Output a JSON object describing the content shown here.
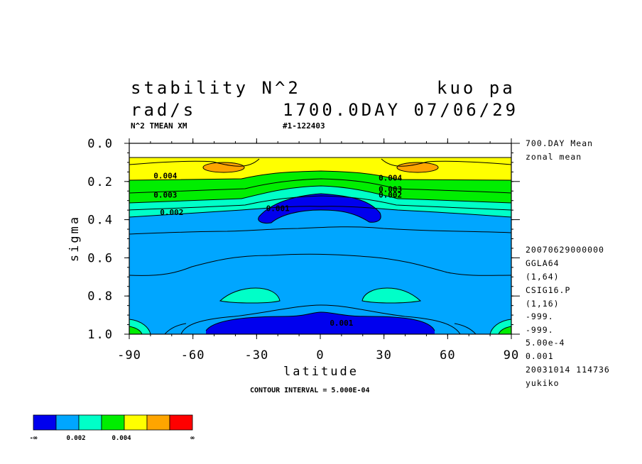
{
  "title": {
    "line1_left": "stability N^2",
    "line1_right": "kuo pa",
    "line2_left": "rad/s",
    "line2_right": "1700.0DAY 07/06/29"
  },
  "subtitle": {
    "left": "N^2 TMEAN XM",
    "right": "#1-122403"
  },
  "side_info": {
    "top": [
      "700.DAY Mean",
      "zonal mean"
    ],
    "bottom": [
      "20070629000000",
      "GGLA64",
      "(1,64)",
      "CSIG16.P",
      "(1,16)",
      "-999.",
      "-999.",
      "5.00e-4",
      "0.001",
      "20031014 114736",
      "yukiko"
    ]
  },
  "footer": {
    "contour_interval": "CONTOUR INTERVAL = 5.000E-04"
  },
  "colorbar": {
    "colors": [
      "#0000ee",
      "#00a6ff",
      "#00ffc8",
      "#00ee00",
      "#ffff00",
      "#ffa500",
      "#ff0000"
    ],
    "labels": [
      "-∞",
      "0.002",
      "0.004",
      "∞"
    ]
  },
  "chart_data": {
    "type": "heatmap",
    "title": "stability N^2",
    "xlabel": "latitude",
    "ylabel": "sigma",
    "xlim": [
      -90,
      90
    ],
    "ylim": [
      1.0,
      0.0
    ],
    "x_ticks": [
      "-90",
      "-60",
      "-30",
      "0",
      "30",
      "60",
      "90"
    ],
    "y_ticks": [
      "0.0",
      "0.2",
      "0.4",
      "0.6",
      "0.8",
      "1.0"
    ],
    "contour_interval": 0.0005,
    "contour_labels": [
      {
        "text": "0.004",
        "lat": -73,
        "sigma": 0.17
      },
      {
        "text": "0.003",
        "lat": -73,
        "sigma": 0.27
      },
      {
        "text": "0.002",
        "lat": -70,
        "sigma": 0.36
      },
      {
        "text": "0.001",
        "lat": -20,
        "sigma": 0.34
      },
      {
        "text": "0.004",
        "lat": 33,
        "sigma": 0.18
      },
      {
        "text": "0.003",
        "lat": 33,
        "sigma": 0.24
      },
      {
        "text": "0.002",
        "lat": 33,
        "sigma": 0.27
      },
      {
        "text": "0.001",
        "lat": 10,
        "sigma": 0.94
      }
    ],
    "bands": [
      {
        "range": "<0.001",
        "color": "#0000ee"
      },
      {
        "range": "0.001-0.002",
        "color": "#00a6ff"
      },
      {
        "range": "0.002-0.003",
        "color": "#00ffc8"
      },
      {
        "range": "0.003-0.004",
        "color": "#00ee00"
      },
      {
        "range": "0.004-0.005",
        "color": "#ffff00"
      },
      {
        "range": "0.005-0.006",
        "color": "#ffa500"
      },
      {
        "range": ">0.006",
        "color": "#ff0000"
      }
    ]
  }
}
